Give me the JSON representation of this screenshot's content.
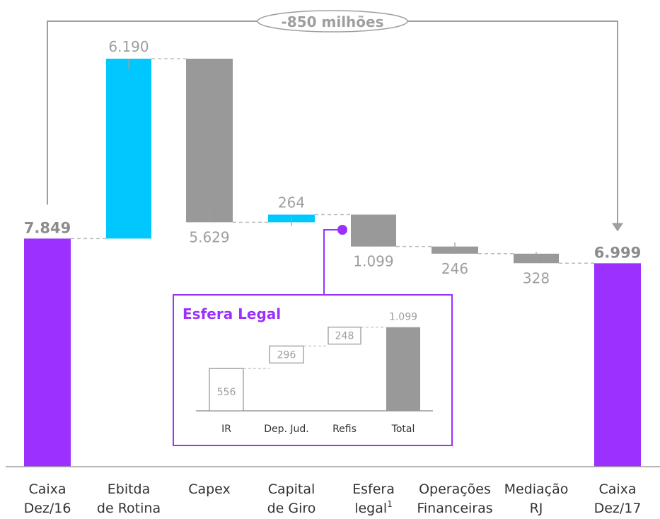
{
  "chart_data": {
    "type": "waterfall",
    "unit": "milhões",
    "colors": {
      "total": "#9b30ff",
      "increase": "#00c8ff",
      "decrease": "#999999",
      "connector": "#bdbdbd",
      "label": "#9e9e9e",
      "total_label": "#8c8c8c",
      "axis": "#9e9e9e",
      "text": "#333333"
    },
    "ylim": [
      0,
      14039
    ],
    "bars": [
      {
        "key": "caixa16",
        "category": [
          "Caixa",
          "Dez/16"
        ],
        "kind": "total",
        "value": 7849,
        "label": "7.849"
      },
      {
        "key": "ebitda",
        "category": [
          "Ebitda",
          "de Rotina"
        ],
        "kind": "increase",
        "value": 6190,
        "label": "6.190"
      },
      {
        "key": "capex",
        "category": [
          "Capex"
        ],
        "kind": "decrease",
        "value": -5629,
        "label": "5.629"
      },
      {
        "key": "capgiro",
        "category": [
          "Capital",
          "de Giro"
        ],
        "kind": "increase",
        "value": 264,
        "label": "264"
      },
      {
        "key": "esfera",
        "category": [
          "Esfera",
          "legal"
        ],
        "superscript": "1",
        "kind": "decrease",
        "value": -1099,
        "label": "1.099"
      },
      {
        "key": "opfin",
        "category": [
          "Operações",
          "Financeiras"
        ],
        "kind": "decrease",
        "value": -246,
        "label": "246"
      },
      {
        "key": "rj",
        "category": [
          "Mediação",
          "RJ"
        ],
        "kind": "decrease",
        "value": -328,
        "label": "328"
      },
      {
        "key": "caixa17",
        "category": [
          "Caixa",
          "Dez/17"
        ],
        "kind": "total",
        "value": 6999,
        "label": "6.999"
      }
    ],
    "change_annotation": "-850 milhões",
    "inset": {
      "title": "Esfera Legal",
      "type": "waterfall",
      "categories": [
        "IR",
        "Dep. Jud.",
        "Refis",
        "Total"
      ],
      "values": [
        556,
        296,
        248,
        1099
      ],
      "labels": [
        "556",
        "296",
        "248",
        "1.099"
      ],
      "colors": {
        "border": "#9b30ff",
        "box": "#999999",
        "total": "#999999",
        "title": "#9b30ff"
      }
    }
  }
}
